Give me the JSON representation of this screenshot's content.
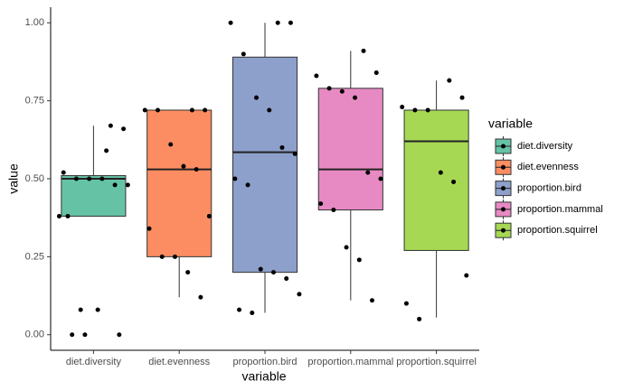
{
  "chart_data": {
    "type": "box",
    "x_label": "variable",
    "y_label": "value",
    "legend_title": "variable",
    "categories": [
      "diet.diversity",
      "diet.evenness",
      "proportion.bird",
      "proportion.mammal",
      "proportion.squirrel"
    ],
    "ylim": [
      -0.05,
      1.05
    ],
    "yticks": [
      {
        "value": 0,
        "label": "0.00"
      },
      {
        "value": 0.25,
        "label": "0.25"
      },
      {
        "value": 0.5,
        "label": "0.50"
      },
      {
        "value": 0.75,
        "label": "0.75"
      },
      {
        "value": 1,
        "label": "1.00"
      }
    ],
    "series": [
      {
        "name": "diet.diversity",
        "color": "#66c2a5",
        "whisker_low": 0.38,
        "q1": 0.38,
        "median": 0.5,
        "q3": 0.51,
        "whisker_high": 0.67,
        "points": [
          0.59,
          0,
          0.38,
          0,
          0,
          0.08,
          0.67,
          0.66,
          0.52,
          0.5,
          0.5,
          0.5,
          0.48,
          0.48,
          0.38,
          0.08
        ]
      },
      {
        "name": "diet.evenness",
        "color": "#fc8d62",
        "whisker_low": 0.12,
        "q1": 0.25,
        "median": 0.53,
        "q3": 0.72,
        "whisker_high": 0.72,
        "points": [
          0.72,
          0.72,
          0.72,
          0.72,
          0.61,
          0.54,
          0.53,
          0.38,
          0.34,
          0.25,
          0.25,
          0.2,
          0.12
        ]
      },
      {
        "name": "proportion.bird",
        "color": "#8da0cb",
        "whisker_low": 0.07,
        "q1": 0.2,
        "median": 0.585,
        "q3": 0.89,
        "whisker_high": 1,
        "points": [
          1,
          1,
          1,
          0.9,
          0.76,
          0.72,
          0.6,
          0.58,
          0.5,
          0.48,
          0.21,
          0.2,
          0.18,
          0.13,
          0.08,
          0.07
        ]
      },
      {
        "name": "proportion.mammal",
        "color": "#e78ac3",
        "whisker_low": 0.11,
        "q1": 0.4,
        "median": 0.53,
        "q3": 0.79,
        "whisker_high": 0.91,
        "points": [
          0.91,
          0.84,
          0.83,
          0.79,
          0.78,
          0.76,
          0.52,
          0.5,
          0.42,
          0.4,
          0.28,
          0.24,
          0.11
        ]
      },
      {
        "name": "proportion.squirrel",
        "color": "#a6d854",
        "whisker_low": 0.055,
        "q1": 0.27,
        "median": 0.62,
        "q3": 0.72,
        "whisker_high": 0.815,
        "points": [
          0.815,
          0.76,
          0.73,
          0.72,
          0.72,
          0.52,
          0.49,
          0.19,
          0.1,
          0.05
        ]
      }
    ]
  }
}
